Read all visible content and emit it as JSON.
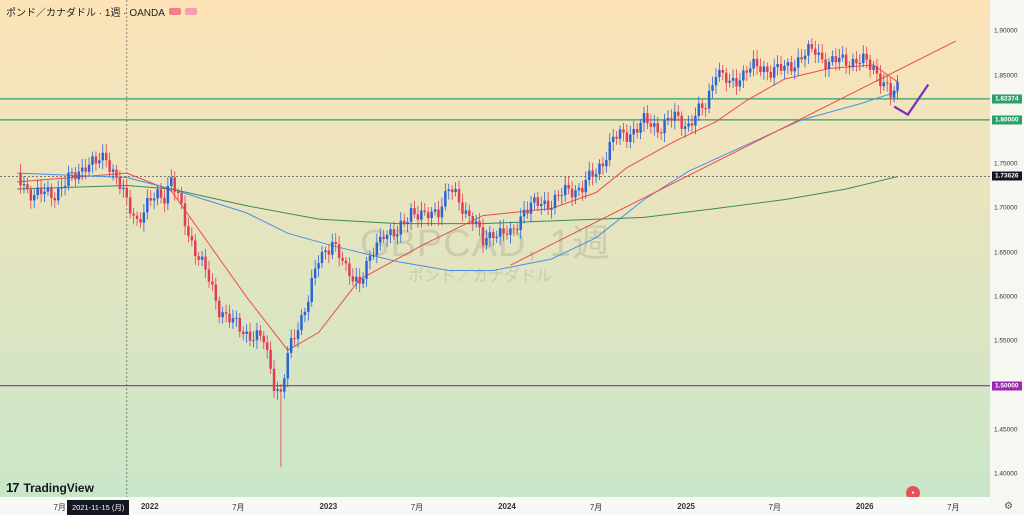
{
  "header": {
    "title": "ポンド／カナダドル · 1週 · OANDA",
    "badge_colors": [
      "#f07f8a",
      "#f5a0b0"
    ]
  },
  "watermark": {
    "symbol": "GBPCAD, 1週",
    "subtitle": "ポンド／カナダドル"
  },
  "logo": {
    "mark": "17",
    "text": "TradingView"
  },
  "cursor_date": "2021-11-15 (月)",
  "colors": {
    "up": "#2a62d8",
    "down": "#e23c55",
    "ma_short": "#ef4a4a",
    "ma_mid": "#4a8ee8",
    "ma_long": "#3c8a5c",
    "hline_green": "#2f9e6d",
    "hline_purple": "#9c27b0",
    "bg_top": "#fde3b8",
    "bg_bottom": "#c9e6c8"
  },
  "chart_data": {
    "type": "candlestick",
    "symbol": "GBPCAD",
    "ylim": [
      1.38,
      1.95
    ],
    "x_axis_labels": [
      "7月",
      "2022",
      "7月",
      "2023",
      "7月",
      "2024",
      "7月",
      "2025",
      "7月",
      "2026",
      "7月"
    ],
    "x_axis_label_dates": [
      "2021-07",
      "2022-01",
      "2022-07",
      "2023-01",
      "2023-07",
      "2024-01",
      "2024-07",
      "2025-01",
      "2025-07",
      "2026-01",
      "2026-07"
    ],
    "y_ticks": [
      1.4,
      1.45,
      1.5,
      1.55,
      1.6,
      1.65,
      1.7,
      1.75,
      1.8,
      1.85,
      1.9,
      1.95
    ],
    "price_labels": [
      {
        "value": 1.82374,
        "label": "1.82374",
        "color": "#2f9e6d"
      },
      {
        "value": 1.8,
        "label": "1.80000",
        "color": "#2f9e6d"
      },
      {
        "value": 1.73626,
        "label": "1.73626",
        "color": "#131722"
      },
      {
        "value": 1.5,
        "label": "1.50000",
        "color": "#9c27b0"
      }
    ],
    "horizontal_lines": [
      {
        "value": 1.82374,
        "color": "#2f9e6d"
      },
      {
        "value": 1.8,
        "color": "#2f9e6d"
      },
      {
        "value": 1.5,
        "color": "#9c27b0"
      }
    ],
    "crosshair": {
      "date": "2021-11-15",
      "value": 1.73626
    },
    "trendline": {
      "from": {
        "date": "2024-01-08",
        "value": 1.636
      },
      "to": {
        "date": "2026-07-06",
        "value": 1.889
      }
    },
    "forecast_path": [
      {
        "date": "2026-03-02",
        "value": 1.815
      },
      {
        "date": "2026-03-30",
        "value": 1.806
      },
      {
        "date": "2026-05-11",
        "value": 1.84
      }
    ],
    "close_path": [
      [
        "2021-04-05",
        1.735
      ],
      [
        "2021-05-10",
        1.715
      ],
      [
        "2021-06-21",
        1.718
      ],
      [
        "2021-08-02",
        1.738
      ],
      [
        "2021-08-23",
        1.751
      ],
      [
        "2021-09-13",
        1.75
      ],
      [
        "2021-10-04",
        1.759
      ],
      [
        "2021-10-25",
        1.735
      ],
      [
        "2021-11-15",
        1.705
      ],
      [
        "2021-12-06",
        1.688
      ],
      [
        "2021-12-27",
        1.703
      ],
      [
        "2022-01-17",
        1.715
      ],
      [
        "2022-01-31",
        1.716
      ],
      [
        "2022-02-14",
        1.734
      ],
      [
        "2022-02-28",
        1.71
      ],
      [
        "2022-03-21",
        1.672
      ],
      [
        "2022-04-25",
        1.628
      ],
      [
        "2022-05-23",
        1.588
      ],
      [
        "2022-06-20",
        1.57
      ],
      [
        "2022-07-18",
        1.56
      ],
      [
        "2022-08-22",
        1.55
      ],
      [
        "2022-09-12",
        1.505
      ],
      [
        "2022-09-26",
        1.49
      ],
      [
        "2022-10-10",
        1.532
      ],
      [
        "2022-10-31",
        1.568
      ],
      [
        "2022-11-21",
        1.6
      ],
      [
        "2022-12-12",
        1.64
      ],
      [
        "2023-01-09",
        1.665
      ],
      [
        "2023-02-06",
        1.628
      ],
      [
        "2023-03-06",
        1.62
      ],
      [
        "2023-03-27",
        1.64
      ],
      [
        "2023-04-24",
        1.676
      ],
      [
        "2023-05-22",
        1.668
      ],
      [
        "2023-06-19",
        1.7
      ],
      [
        "2023-07-17",
        1.688
      ],
      [
        "2023-08-14",
        1.7
      ],
      [
        "2023-09-04",
        1.722
      ],
      [
        "2023-10-02",
        1.702
      ],
      [
        "2023-10-23",
        1.69
      ],
      [
        "2023-11-13",
        1.66
      ],
      [
        "2023-12-04",
        1.676
      ],
      [
        "2024-01-08",
        1.668
      ],
      [
        "2024-02-05",
        1.7
      ],
      [
        "2024-03-04",
        1.704
      ],
      [
        "2024-04-01",
        1.708
      ],
      [
        "2024-05-06",
        1.72
      ],
      [
        "2024-06-03",
        1.725
      ],
      [
        "2024-07-01",
        1.74
      ],
      [
        "2024-08-05",
        1.778
      ],
      [
        "2024-09-02",
        1.784
      ],
      [
        "2024-10-07",
        1.797
      ],
      [
        "2024-11-04",
        1.792
      ],
      [
        "2024-12-09",
        1.802
      ],
      [
        "2025-01-06",
        1.795
      ],
      [
        "2025-02-10",
        1.816
      ],
      [
        "2025-03-03",
        1.858
      ],
      [
        "2025-03-31",
        1.838
      ],
      [
        "2025-05-05",
        1.858
      ],
      [
        "2025-06-16",
        1.858
      ],
      [
        "2025-07-21",
        1.856
      ],
      [
        "2025-08-25",
        1.872
      ],
      [
        "2025-09-22",
        1.878
      ],
      [
        "2025-10-20",
        1.864
      ],
      [
        "2025-11-24",
        1.868
      ],
      [
        "2025-12-22",
        1.866
      ],
      [
        "2026-01-19",
        1.86
      ],
      [
        "2026-02-09",
        1.842
      ],
      [
        "2026-02-23",
        1.825
      ],
      [
        "2026-03-09",
        1.836
      ]
    ],
    "moving_averages": [
      {
        "color": "#ef4a4a",
        "points": [
          [
            "2021-04-05",
            1.73
          ],
          [
            "2021-11-15",
            1.74
          ],
          [
            "2022-02-14",
            1.72
          ],
          [
            "2022-07-18",
            1.6
          ],
          [
            "2022-10-10",
            1.54
          ],
          [
            "2022-12-12",
            1.56
          ],
          [
            "2023-03-06",
            1.62
          ],
          [
            "2023-07-17",
            1.66
          ],
          [
            "2023-11-13",
            1.692
          ],
          [
            "2024-04-01",
            1.7
          ],
          [
            "2024-07-01",
            1.718
          ],
          [
            "2024-09-02",
            1.746
          ],
          [
            "2024-12-09",
            1.776
          ],
          [
            "2025-03-03",
            1.798
          ],
          [
            "2025-05-05",
            1.822
          ],
          [
            "2025-07-21",
            1.846
          ],
          [
            "2025-10-20",
            1.858
          ],
          [
            "2026-01-19",
            1.862
          ],
          [
            "2026-03-09",
            1.843
          ]
        ]
      },
      {
        "color": "#4a8ee8",
        "points": [
          [
            "2021-04-05",
            1.74
          ],
          [
            "2021-11-15",
            1.735
          ],
          [
            "2022-02-14",
            1.722
          ],
          [
            "2022-07-18",
            1.695
          ],
          [
            "2022-10-10",
            1.672
          ],
          [
            "2023-01-09",
            1.658
          ],
          [
            "2023-05-22",
            1.64
          ],
          [
            "2023-09-04",
            1.63
          ],
          [
            "2023-12-04",
            1.63
          ],
          [
            "2024-04-01",
            1.643
          ],
          [
            "2024-07-01",
            1.667
          ],
          [
            "2024-10-07",
            1.71
          ],
          [
            "2025-01-06",
            1.742
          ],
          [
            "2025-05-05",
            1.772
          ],
          [
            "2025-08-25",
            1.8
          ],
          [
            "2025-12-22",
            1.818
          ],
          [
            "2026-03-09",
            1.832
          ]
        ]
      },
      {
        "color": "#3c8a5c",
        "points": [
          [
            "2021-04-05",
            1.722
          ],
          [
            "2021-11-15",
            1.726
          ],
          [
            "2022-02-14",
            1.722
          ],
          [
            "2022-07-18",
            1.703
          ],
          [
            "2022-12-12",
            1.688
          ],
          [
            "2023-05-22",
            1.683
          ],
          [
            "2023-11-13",
            1.683
          ],
          [
            "2024-04-01",
            1.686
          ],
          [
            "2024-10-07",
            1.69
          ],
          [
            "2025-03-03",
            1.7
          ],
          [
            "2025-07-21",
            1.71
          ],
          [
            "2025-11-24",
            1.722
          ],
          [
            "2026-03-09",
            1.736
          ]
        ]
      }
    ]
  },
  "axis_date_range": [
    "2021-03-01",
    "2026-09-14"
  ]
}
